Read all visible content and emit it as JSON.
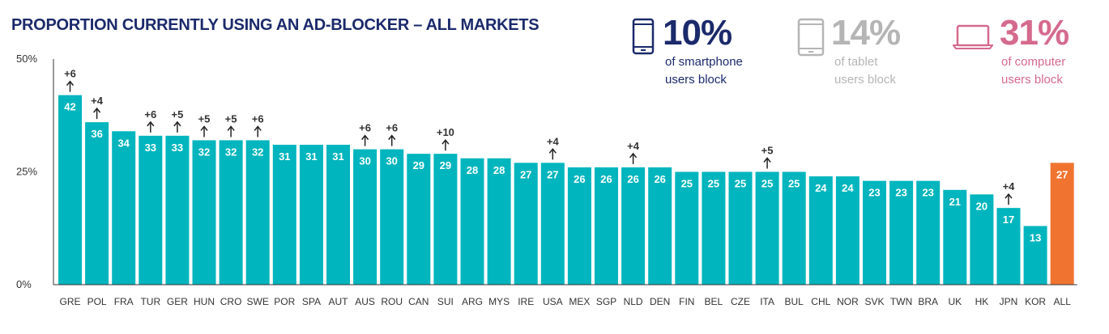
{
  "title": "PROPORTION CURRENTLY USING AN AD-BLOCKER – ALL MARKETS",
  "stats": {
    "phone": {
      "value": "10%",
      "line1": "of smartphone",
      "line2": "users block",
      "icon": "smartphone-icon",
      "color": "#1b2a6b"
    },
    "tablet": {
      "value": "14%",
      "line1": "of tablet",
      "line2": "users block",
      "icon": "tablet-icon",
      "color": "#b5b5b5"
    },
    "computer": {
      "value": "31%",
      "line1": "of computer",
      "line2": "users block",
      "icon": "laptop-icon",
      "color": "#d56a8d"
    }
  },
  "chart_data": {
    "type": "bar",
    "title": "PROPORTION CURRENTLY USING AN AD-BLOCKER – ALL MARKETS",
    "xlabel": "",
    "ylabel": "",
    "ylim": [
      0,
      50
    ],
    "yticks": [
      "50%",
      "25%",
      "0%"
    ],
    "ytick_values": [
      50,
      25,
      0
    ],
    "categories": [
      "GRE",
      "POL",
      "FRA",
      "TUR",
      "GER",
      "HUN",
      "CRO",
      "SWE",
      "POR",
      "SPA",
      "AUT",
      "AUS",
      "ROU",
      "CAN",
      "SUI",
      "ARG",
      "MYS",
      "IRE",
      "USA",
      "MEX",
      "SGP",
      "NLD",
      "DEN",
      "FIN",
      "BEL",
      "CZE",
      "ITA",
      "BUL",
      "CHL",
      "NOR",
      "SVK",
      "TWN",
      "BRA",
      "UK",
      "HK",
      "JPN",
      "KOR",
      "ALL"
    ],
    "values": [
      42,
      36,
      34,
      33,
      33,
      32,
      32,
      32,
      31,
      31,
      31,
      30,
      30,
      29,
      29,
      28,
      28,
      27,
      27,
      26,
      26,
      26,
      26,
      25,
      25,
      25,
      25,
      25,
      24,
      24,
      23,
      23,
      23,
      21,
      20,
      17,
      13,
      27
    ],
    "changes": [
      "+6",
      "+4",
      "",
      "+6",
      "+5",
      "+5",
      "+5",
      "+6",
      "",
      "",
      "",
      "+6",
      "+6",
      "",
      "+10",
      "",
      "",
      "",
      "+4",
      "",
      "",
      "+4",
      "",
      "",
      "",
      "",
      "+5",
      "",
      "",
      "",
      "",
      "",
      "",
      "",
      "",
      "+4",
      "",
      ""
    ],
    "bar_color": "#00b5bd",
    "highlight_color": "#f07430",
    "highlight_category": "ALL",
    "grid": false,
    "legend": "none"
  }
}
